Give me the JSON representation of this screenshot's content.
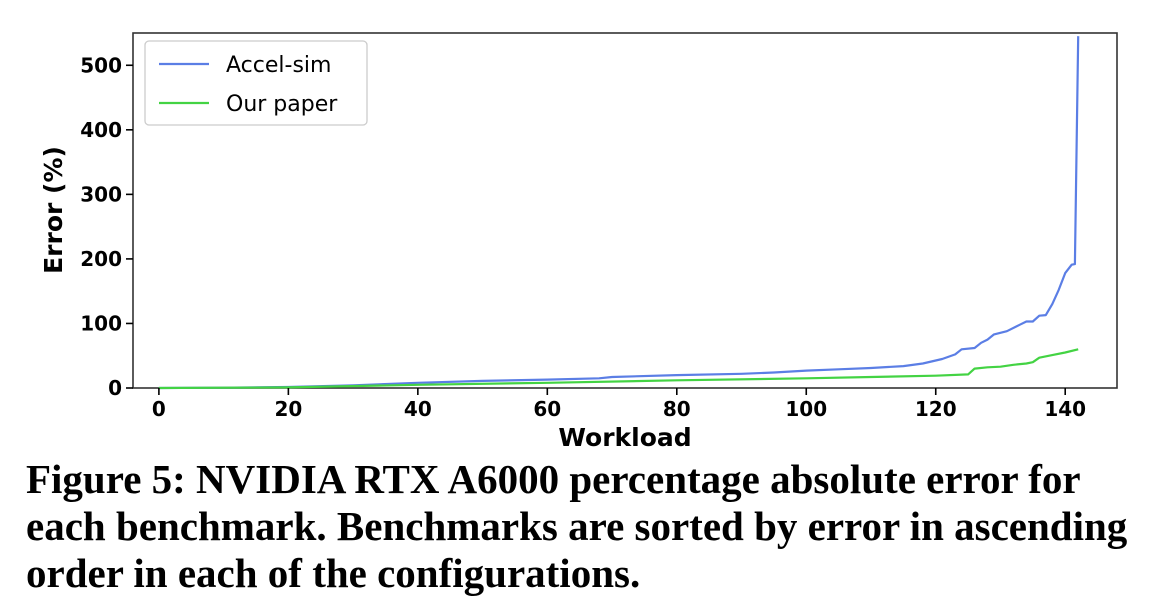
{
  "chart_data": {
    "type": "line",
    "title": "",
    "xlabel": "Workload",
    "ylabel": "Error (%)",
    "xlim": [
      -4,
      148
    ],
    "ylim": [
      0,
      550
    ],
    "xticks": [
      0,
      20,
      40,
      60,
      80,
      100,
      120,
      140
    ],
    "yticks": [
      0,
      100,
      200,
      300,
      400,
      500
    ],
    "grid": false,
    "legend_position": "upper-left",
    "series": [
      {
        "name": "Accel-sim",
        "color": "#5b7ee5",
        "points": [
          [
            0,
            0
          ],
          [
            10,
            0.5
          ],
          [
            20,
            1.5
          ],
          [
            30,
            4
          ],
          [
            40,
            8
          ],
          [
            50,
            11
          ],
          [
            60,
            13
          ],
          [
            68,
            15
          ],
          [
            70,
            17
          ],
          [
            80,
            20
          ],
          [
            90,
            22
          ],
          [
            95,
            24
          ],
          [
            100,
            27
          ],
          [
            105,
            29
          ],
          [
            110,
            31
          ],
          [
            115,
            34
          ],
          [
            118,
            38
          ],
          [
            121,
            45
          ],
          [
            123,
            52
          ],
          [
            124,
            60
          ],
          [
            126,
            62
          ],
          [
            127,
            70
          ],
          [
            128,
            75
          ],
          [
            129,
            83
          ],
          [
            131,
            88
          ],
          [
            133,
            98
          ],
          [
            134,
            103
          ],
          [
            135,
            103
          ],
          [
            136,
            112
          ],
          [
            137,
            113
          ],
          [
            138,
            130
          ],
          [
            139,
            152
          ],
          [
            140,
            178
          ],
          [
            141,
            191
          ],
          [
            141.5,
            192
          ],
          [
            142,
            545
          ]
        ]
      },
      {
        "name": "Our paper",
        "color": "#43d343",
        "points": [
          [
            0,
            0
          ],
          [
            20,
            1
          ],
          [
            40,
            5
          ],
          [
            60,
            8
          ],
          [
            80,
            12
          ],
          [
            100,
            15
          ],
          [
            110,
            17
          ],
          [
            120,
            19
          ],
          [
            125,
            21
          ],
          [
            126,
            30
          ],
          [
            128,
            32
          ],
          [
            130,
            33
          ],
          [
            132,
            36
          ],
          [
            134,
            38
          ],
          [
            135,
            40
          ],
          [
            136,
            47
          ],
          [
            138,
            51
          ],
          [
            140,
            55
          ],
          [
            142,
            60
          ]
        ]
      }
    ]
  },
  "caption": "Figure 5: NVIDIA RTX A6000 percentage absolute error for each benchmark. Benchmarks are sorted by error in ascending order in each of the configurations."
}
